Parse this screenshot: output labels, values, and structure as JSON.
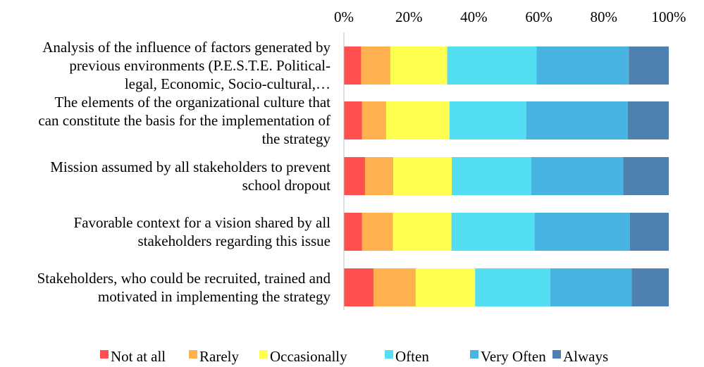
{
  "chart_data": {
    "type": "bar",
    "orientation": "horizontal",
    "stacked": "percent",
    "categories": [
      "Analysis of the influence of factors generated by previous environments (P.E.S.T.E. Political-legal, Economic, Socio-cultural,…",
      "The elements of the organizational culture that can constitute the basis for the implementation of the strategy",
      "Mission assumed by all stakeholders to prevent school dropout",
      "Favorable context for a vision shared by all stakeholders regarding this issue",
      "Stakeholders, who could be recruited, trained and motivated in implementing the strategy"
    ],
    "category_lines": [
      [
        "Analysis of the influence of factors generated by",
        "previous environments (P.E.S.T.E. Political-",
        "legal, Economic, Socio-cultural,…"
      ],
      [
        "The elements of the organizational culture that",
        "can constitute the basis for the implementation of",
        "the strategy"
      ],
      [
        "Mission assumed by all stakeholders to prevent",
        "school dropout"
      ],
      [
        "Favorable context for a vision shared by all",
        "stakeholders regarding this issue"
      ],
      [
        "Stakeholders, who could be recruited, trained and",
        "motivated in implementing the strategy"
      ]
    ],
    "series": [
      {
        "name": "Not at all",
        "color": "#ff4f4f",
        "values": [
          5.3,
          5.6,
          6.5,
          5.6,
          9.1
        ]
      },
      {
        "name": "Rarely",
        "color": "#ffb04f",
        "values": [
          9.0,
          7.4,
          8.7,
          9.5,
          13.0
        ]
      },
      {
        "name": "Occasionally",
        "color": "#ffff4f",
        "values": [
          17.5,
          19.5,
          18.0,
          18.0,
          18.3
        ]
      },
      {
        "name": "Often",
        "color": "#54def2",
        "values": [
          27.5,
          23.6,
          24.5,
          25.6,
          23.1
        ]
      },
      {
        "name": "Very Often",
        "color": "#48b4e2",
        "values": [
          28.4,
          31.3,
          28.3,
          29.3,
          25.1
        ]
      },
      {
        "name": "Always",
        "color": "#4f81b0",
        "values": [
          12.3,
          12.6,
          14.0,
          12.0,
          11.4
        ]
      }
    ],
    "x_ticks": [
      "0%",
      "20%",
      "40%",
      "60%",
      "80%",
      "100%"
    ],
    "xlim": [
      0,
      100
    ],
    "grid": false,
    "legend_position": "bottom",
    "title": "",
    "xlabel": "",
    "ylabel": ""
  }
}
